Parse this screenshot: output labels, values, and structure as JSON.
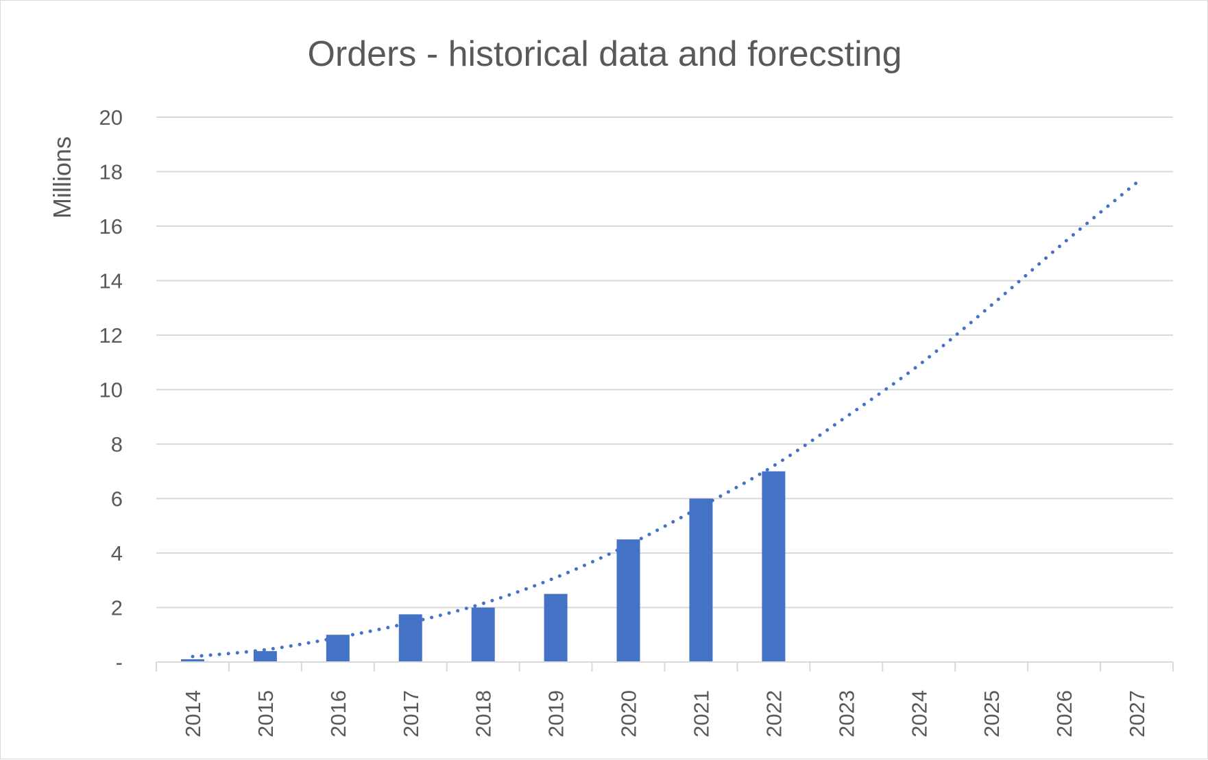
{
  "chart_data": {
    "type": "bar",
    "title": "Orders - historical data and forecsting",
    "xlabel": "",
    "ylabel": "Millions",
    "categories": [
      "2014",
      "2015",
      "2016",
      "2017",
      "2018",
      "2019",
      "2020",
      "2021",
      "2022",
      "2023",
      "2024",
      "2025",
      "2026",
      "2027"
    ],
    "series": [
      {
        "values": [
          0.1,
          0.4,
          1.0,
          1.75,
          2.0,
          2.5,
          4.5,
          6.0,
          7.0,
          null,
          null,
          null,
          null,
          null
        ],
        "color": "#4472c4"
      }
    ],
    "trendline": {
      "style": "dotted",
      "color": "#4472c4",
      "values": [
        0.2,
        0.45,
        0.9,
        1.45,
        2.15,
        3.1,
        4.3,
        5.7,
        7.2,
        9.0,
        10.9,
        13.1,
        15.4,
        17.6
      ]
    },
    "ylim": [
      0,
      20
    ],
    "yticks": [
      0,
      2,
      4,
      6,
      8,
      10,
      12,
      14,
      16,
      18,
      20
    ],
    "ytick_labels": [
      "-",
      "2",
      "4",
      "6",
      "8",
      "10",
      "12",
      "14",
      "16",
      "18",
      "20"
    ],
    "grid": true,
    "legend": "none"
  },
  "colors": {
    "bar": "#4472c4",
    "grid": "#d9d9d9",
    "text": "#595959"
  }
}
